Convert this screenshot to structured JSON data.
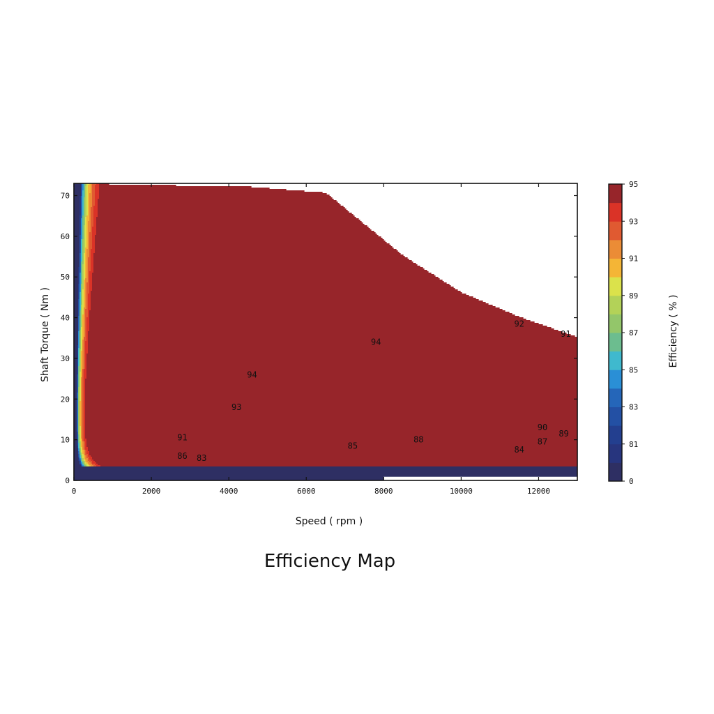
{
  "chart_data": {
    "type": "heatmap",
    "subtype": "filled contour",
    "title": "Efficiency Map",
    "xlabel": "Speed ( rpm )",
    "ylabel": "Shaft Torque ( Nm )",
    "colorbar_label": "Efficiency ( % )",
    "xlim": [
      0,
      13000
    ],
    "ylim": [
      0,
      73
    ],
    "x_ticks": [
      0,
      2000,
      4000,
      6000,
      8000,
      10000,
      12000
    ],
    "y_ticks": [
      0,
      10,
      20,
      30,
      40,
      50,
      60,
      70
    ],
    "colorbar_ticks": [
      "0",
      "81",
      "83",
      "85",
      "87",
      "89",
      "91",
      "93",
      "95"
    ],
    "levels": [
      {
        "min": 0,
        "max": 80,
        "color": "#2e2f63"
      },
      {
        "min": 80,
        "max": 81,
        "color": "#27357e"
      },
      {
        "min": 81,
        "max": 82,
        "color": "#233f8f"
      },
      {
        "min": 82,
        "max": 83,
        "color": "#2350a4"
      },
      {
        "min": 83,
        "max": 84,
        "color": "#2566b9"
      },
      {
        "min": 84,
        "max": 85,
        "color": "#2a8fd6"
      },
      {
        "min": 85,
        "max": 86,
        "color": "#3fb9ce"
      },
      {
        "min": 86,
        "max": 87,
        "color": "#6cbd8f"
      },
      {
        "min": 87,
        "max": 88,
        "color": "#93c66a"
      },
      {
        "min": 88,
        "max": 89,
        "color": "#b3d258"
      },
      {
        "min": 89,
        "max": 90,
        "color": "#dbe24b"
      },
      {
        "min": 90,
        "max": 91,
        "color": "#f4b536"
      },
      {
        "min": 91,
        "max": 92,
        "color": "#eb8c36"
      },
      {
        "min": 92,
        "max": 93,
        "color": "#e05a31"
      },
      {
        "min": 93,
        "max": 94,
        "color": "#da3327"
      },
      {
        "min": 94,
        "max": 95,
        "color": "#97252a"
      }
    ],
    "boundary_max_torque": [
      [
        0,
        73
      ],
      [
        1200,
        72.5
      ],
      [
        4500,
        72
      ],
      [
        6500,
        70.5
      ],
      [
        8500,
        55
      ],
      [
        10000,
        46
      ],
      [
        11500,
        40
      ],
      [
        13000,
        35
      ]
    ],
    "contour_labels": [
      {
        "text": "94",
        "x": 4600,
        "y": 26
      },
      {
        "text": "94",
        "x": 7800,
        "y": 34
      },
      {
        "text": "93",
        "x": 4200,
        "y": 18
      },
      {
        "text": "92",
        "x": 11500,
        "y": 38.5
      },
      {
        "text": "91",
        "x": 12700,
        "y": 36
      },
      {
        "text": "91",
        "x": 2800,
        "y": 10.5
      },
      {
        "text": "90",
        "x": 12100,
        "y": 13
      },
      {
        "text": "89",
        "x": 12650,
        "y": 11.5
      },
      {
        "text": "88",
        "x": 8900,
        "y": 10
      },
      {
        "text": "87",
        "x": 12100,
        "y": 9.5
      },
      {
        "text": "86",
        "x": 2800,
        "y": 6
      },
      {
        "text": "85",
        "x": 7200,
        "y": 8.5
      },
      {
        "text": "84",
        "x": 11500,
        "y": 7.5
      },
      {
        "text": "83",
        "x": 3300,
        "y": 5.5
      }
    ]
  }
}
